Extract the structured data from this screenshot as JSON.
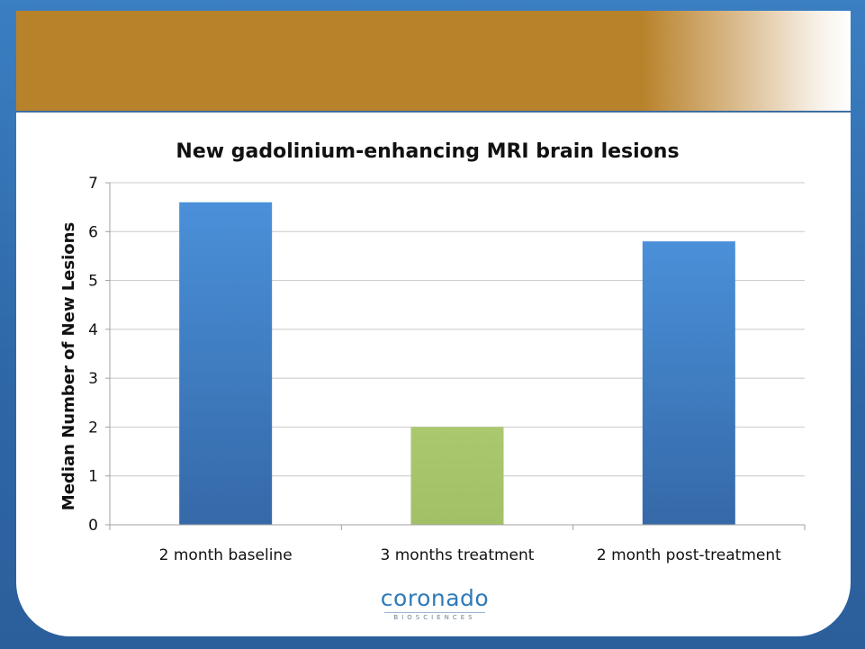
{
  "chart_data": {
    "type": "bar",
    "title": "New gadolinium-enhancing MRI brain lesions",
    "xlabel": "",
    "ylabel": "Median Number of New Lesions",
    "categories": [
      "2 month baseline",
      "3 months treatment",
      "2 month post-treatment"
    ],
    "values": [
      6.6,
      2.0,
      5.8
    ],
    "colors": [
      "#3e7fc4",
      "#a6c46a",
      "#3e7fc4"
    ],
    "ylim": [
      0,
      7
    ],
    "yticks": [
      0,
      1,
      2,
      3,
      4,
      5,
      6,
      7
    ],
    "grid": true,
    "legend": "none"
  },
  "logo": {
    "main": "coronado",
    "sub": "BIOSCIENCES"
  }
}
